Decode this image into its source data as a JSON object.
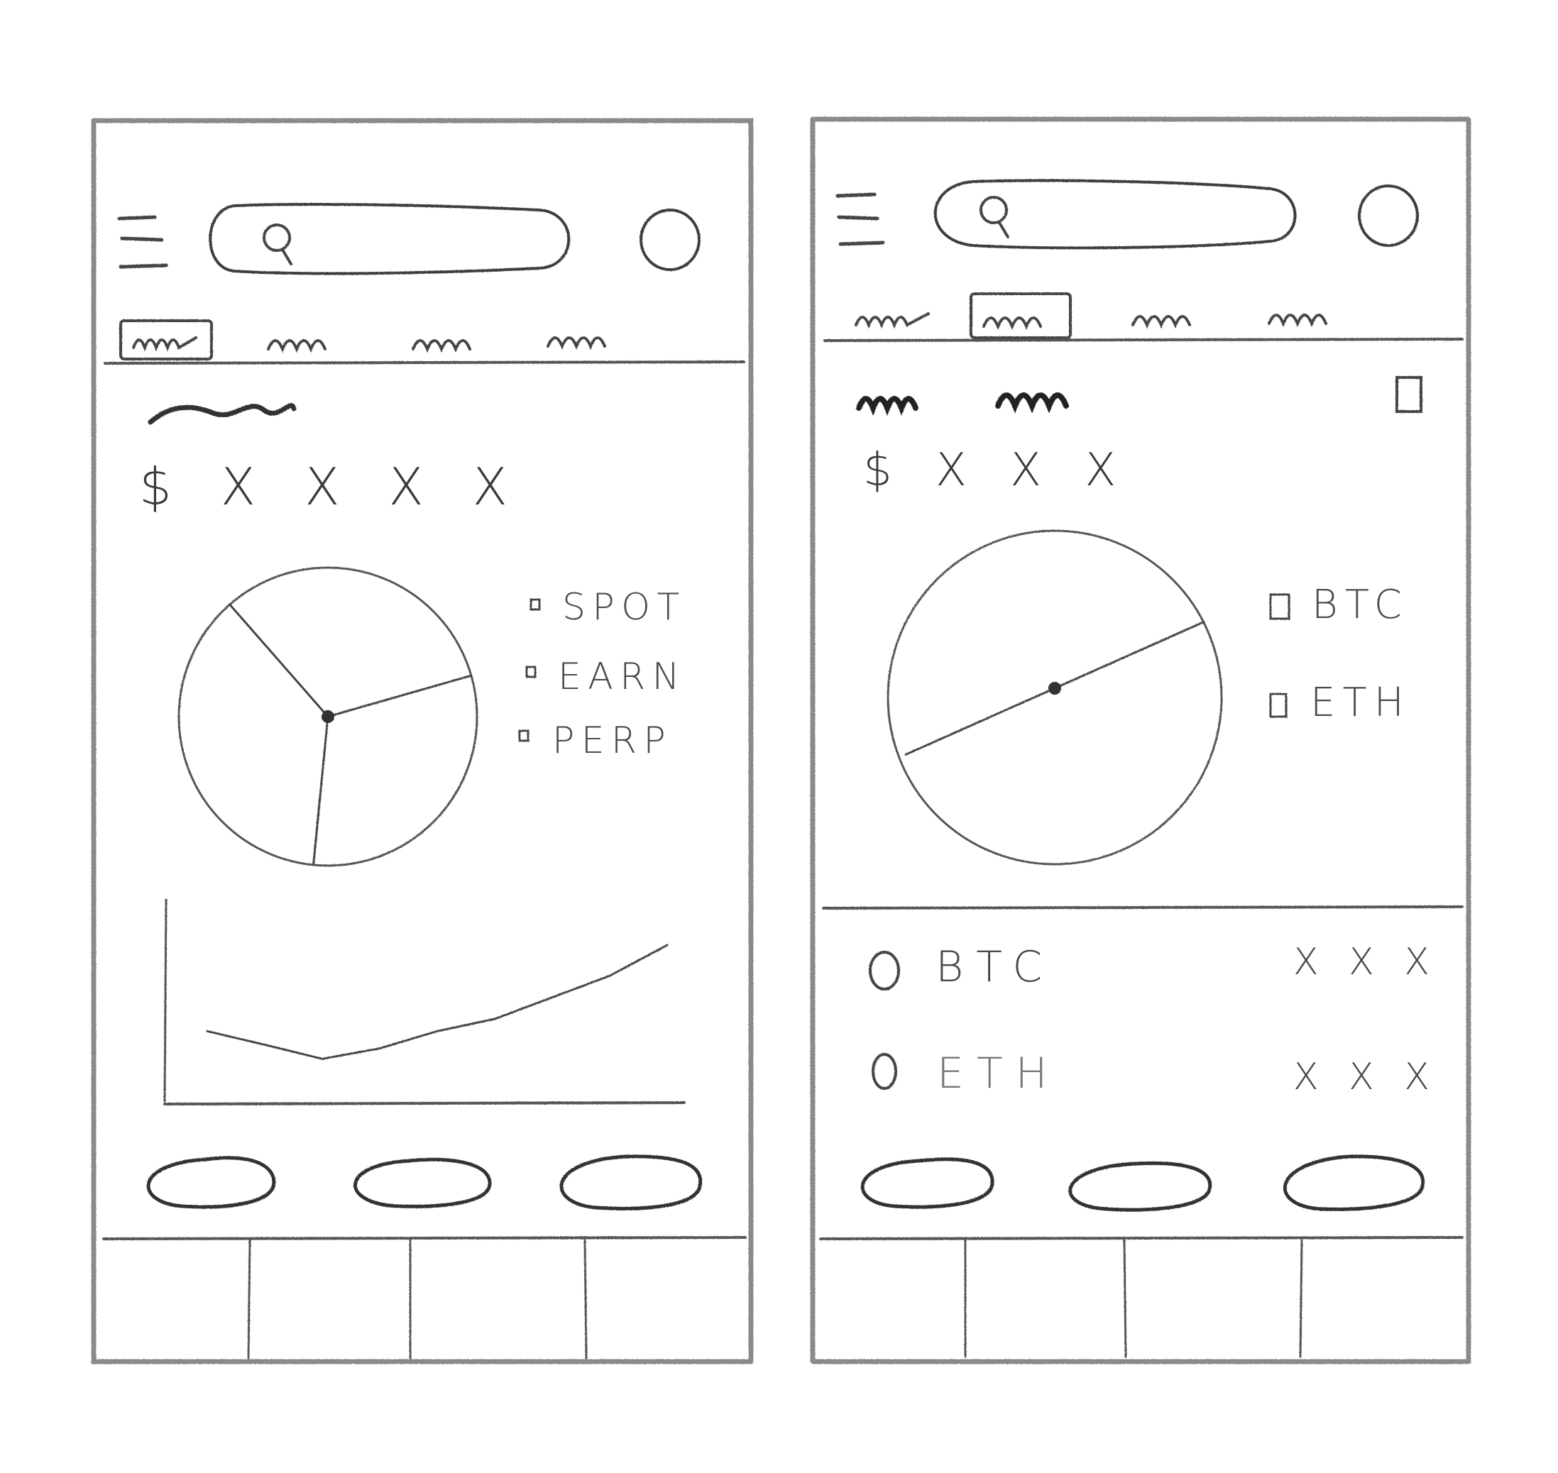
{
  "colors": {
    "pencil": "#4d4d4d",
    "frame": "#8a8a8a",
    "paper": "#ffffff"
  },
  "left_screen": {
    "header": {
      "menu_icon": "hamburger-icon",
      "search_icon": "search-icon",
      "avatar_icon": "profile-circle-icon"
    },
    "tabs": {
      "count": 4,
      "selected_index": 0
    },
    "balance": "$ X X X X",
    "allocation_legend": [
      "SPOT",
      "EARN",
      "PERP"
    ],
    "chart_data": [
      {
        "type": "pie",
        "categories": [
          "SPOT",
          "EARN",
          "PERP"
        ],
        "values": [
          31,
          37,
          32
        ]
      },
      {
        "type": "line",
        "x": [
          0,
          1,
          2,
          3,
          4,
          5,
          6,
          7,
          8
        ],
        "values": [
          1.0,
          0.78,
          0.55,
          0.72,
          1.0,
          1.2,
          1.55,
          1.9,
          2.4
        ],
        "ylim": [
          0,
          3
        ]
      }
    ],
    "action_buttons": 3,
    "bottom_nav_slots": 4
  },
  "right_screen": {
    "header": {
      "menu_icon": "hamburger-icon",
      "search_icon": "search-icon",
      "avatar_icon": "profile-circle-icon"
    },
    "tabs": {
      "count": 4,
      "selected_index": 1
    },
    "balance": "$ X X X",
    "allocation_legend": [
      "BTC",
      "ETH"
    ],
    "chart_data": {
      "type": "pie",
      "categories": [
        "BTC",
        "ETH"
      ],
      "values": [
        50,
        50
      ]
    },
    "holdings": [
      {
        "name": "BTC",
        "value": "X X X"
      },
      {
        "name": "ETH",
        "value": "X X X"
      }
    ],
    "action_buttons": 3,
    "bottom_nav_slots": 4
  }
}
